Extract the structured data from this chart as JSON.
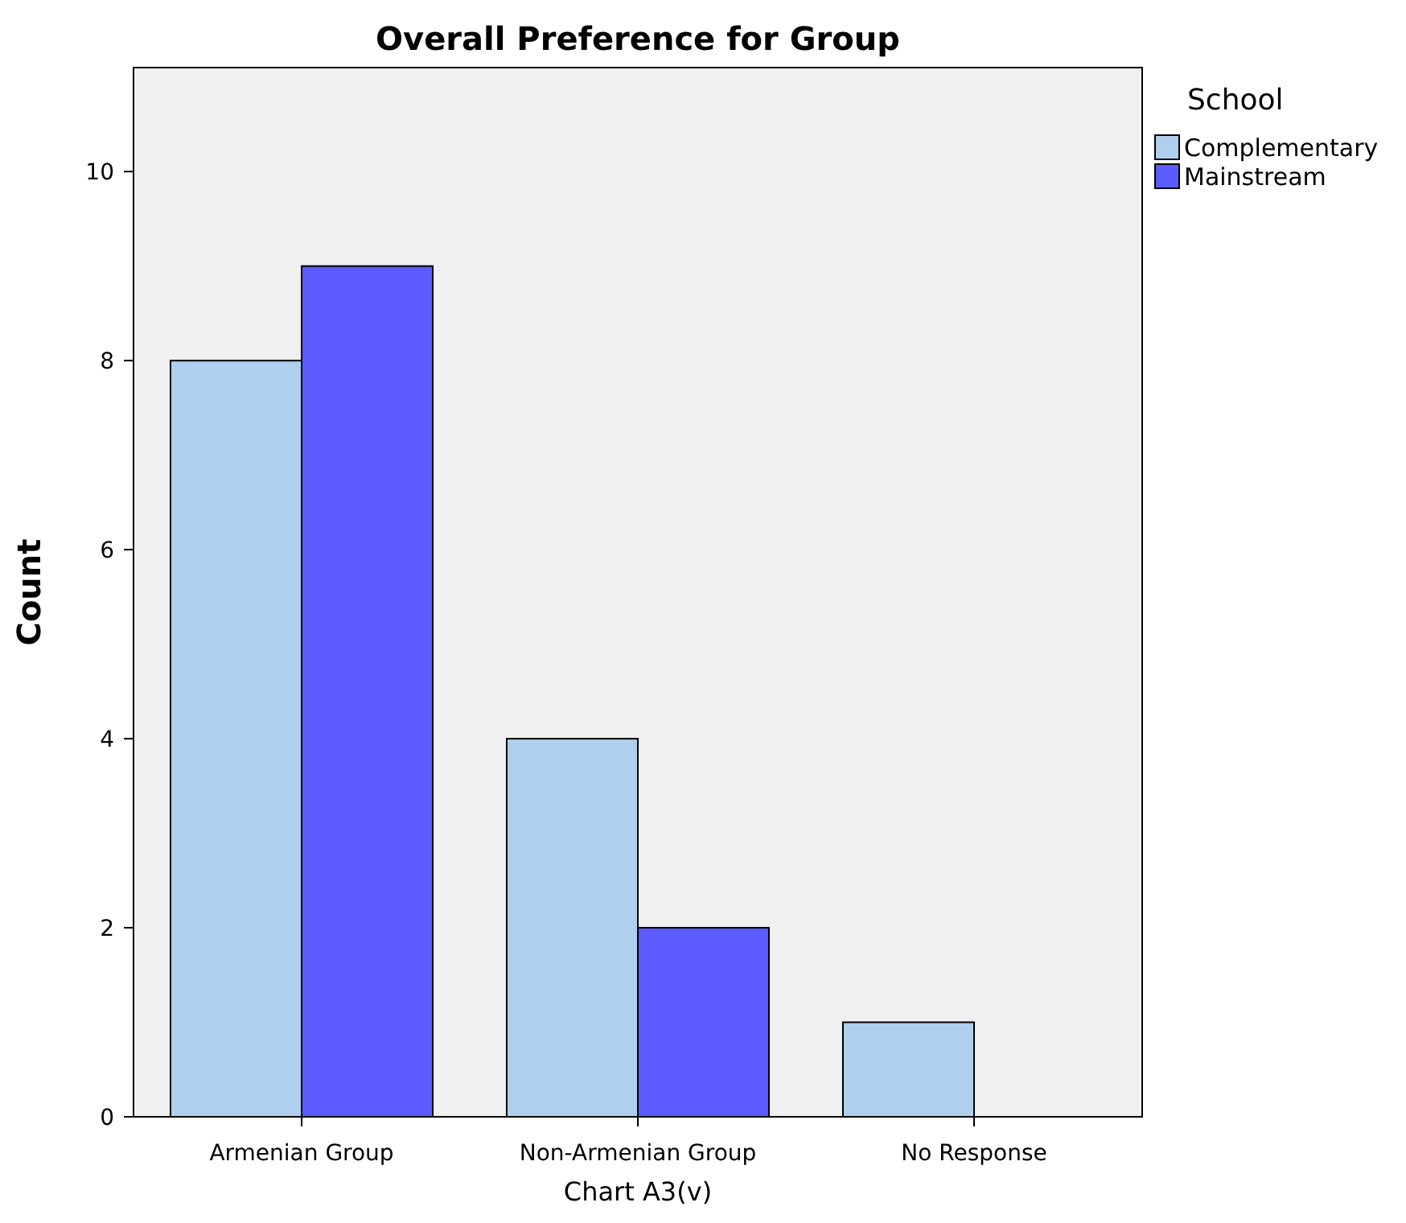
{
  "chart_data": {
    "type": "bar",
    "title": "Overall Preference for Group",
    "xlabel": "Chart A3(v)",
    "ylabel": "Count",
    "legend_title": "School",
    "categories": [
      "Armenian Group",
      "Non-Armenian Group",
      "No Response"
    ],
    "series": [
      {
        "name": "Complementary",
        "color": "#aecfee",
        "values": [
          8,
          4,
          1
        ]
      },
      {
        "name": "Mainstream",
        "color": "#5b5bff",
        "values": [
          9,
          2,
          0
        ]
      }
    ],
    "ylim": [
      0,
      11.1
    ],
    "yticks": [
      0,
      2,
      4,
      6,
      8,
      10
    ],
    "grid": false,
    "legend": "top right"
  }
}
